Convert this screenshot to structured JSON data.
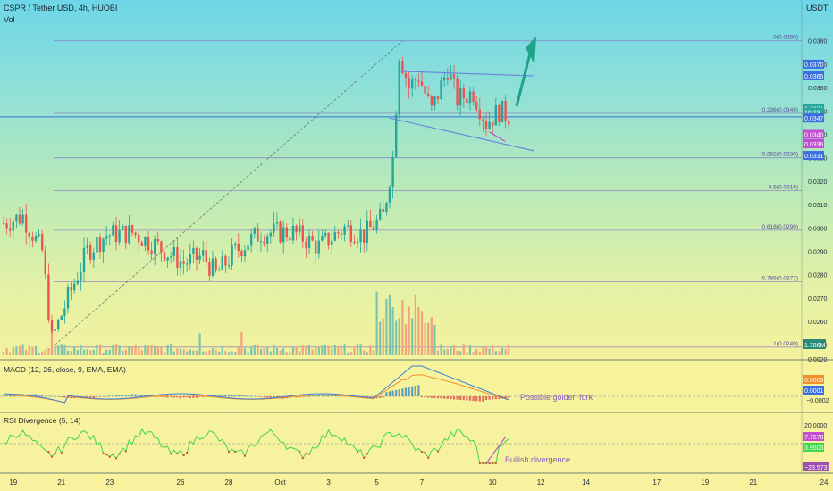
{
  "header": {
    "symbol_line": "CSPR / Tether USD, 4h, HUOBI",
    "vol_label": "Vol",
    "currency": "USDT"
  },
  "colors": {
    "up": "#26a69a",
    "down": "#ef5350",
    "vol_up": "#7dc4b0",
    "vol_down": "#f2a27c",
    "fib_line": "#8a72c8",
    "channel": "#6a7fe0",
    "arrow": "#1fa28a",
    "macd": "#3a7fe0",
    "signal": "#f0902a",
    "rsi": "#3fd64a",
    "rsi_low": "#e0482a"
  },
  "chart_data": [
    {
      "id": "price",
      "type": "candlestick",
      "ylim": [
        0.02455,
        0.0386
      ],
      "y_ticks": [
        "0.0380",
        "0.0370",
        "0.0360",
        "0.0350",
        "0.0340",
        "0.0330",
        "0.0320",
        "0.0310",
        "0.0300",
        "0.0290",
        "0.0280",
        "0.0270",
        "0.0260",
        "0.0250"
      ],
      "fib_levels": [
        {
          "label": "0(0.0380)",
          "value": 0.038
        },
        {
          "label": "0.236(0.0349)",
          "value": 0.0349
        },
        {
          "label": "0.382(0.0330)",
          "value": 0.033
        },
        {
          "label": "0.5(0.0316)",
          "value": 0.0316
        },
        {
          "label": "0.618(0.0299)",
          "value": 0.0299
        },
        {
          "label": "0.786(0.0277)",
          "value": 0.0277
        },
        {
          "label": "1(0.0249)",
          "value": 0.0249
        }
      ],
      "price_badges": [
        {
          "text": "0.0370",
          "value": 0.037,
          "color": "#3a6fe0"
        },
        {
          "text": "0.0365",
          "value": 0.0365,
          "color": "#3a6fe0"
        },
        {
          "text": "0.0351",
          "value": 0.0351,
          "color": "#26a69a"
        },
        {
          "text": "10:29",
          "value": 0.03495,
          "color": "#26a69a"
        },
        {
          "text": "0.0347",
          "value": 0.0347,
          "color": "#3a6fe0"
        },
        {
          "text": "0.0340",
          "value": 0.034,
          "color": "#c24fd0"
        },
        {
          "text": "0.0336",
          "value": 0.0336,
          "color": "#c24fd0"
        },
        {
          "text": "0.0331",
          "value": 0.0331,
          "color": "#3a6fe0"
        }
      ],
      "volume_badge": "1.786M",
      "channel": {
        "upper": [
          [
            0.0366,
            0.0365
          ]
        ],
        "lower": [
          [
            0.0347,
            0.0333
          ]
        ]
      },
      "swing_low": 0.025,
      "swing_high": 0.038,
      "last_price": 0.0351
    },
    {
      "id": "macd",
      "type": "line",
      "title": "MACD (12, 26, close, 9, EMA, EMA)",
      "badges": [
        {
          "text": "0.0003",
          "color": "#f0902a"
        },
        {
          "text": "0.0001",
          "color": "#3a6fe0"
        }
      ],
      "axis_label": "−0.0002",
      "axis_top": "0.0020",
      "annotation": "Possible golden fork"
    },
    {
      "id": "rsi",
      "type": "line",
      "title": "RSI Divergence (5, 14)",
      "axis_top": "20.0000",
      "badges": [
        {
          "text": "7.7578",
          "color": "#c24fd0"
        },
        {
          "text": "3.9503",
          "color": "#3fd64a"
        }
      ],
      "axis_label": "−23.5737",
      "annotation": "Bullish divergence"
    }
  ],
  "x_axis": {
    "labels": [
      {
        "text": "19",
        "i": 3
      },
      {
        "text": "21",
        "i": 18
      },
      {
        "text": "23",
        "i": 33
      },
      {
        "text": "26",
        "i": 55
      },
      {
        "text": "28",
        "i": 70
      },
      {
        "text": "Oct",
        "i": 86
      },
      {
        "text": "3",
        "i": 101
      },
      {
        "text": "5",
        "i": 116
      },
      {
        "text": "7",
        "i": 130
      },
      {
        "text": "10",
        "i": 152
      },
      {
        "text": "12",
        "i": 167
      },
      {
        "text": "14",
        "i": 181
      },
      {
        "text": "17",
        "i": 203
      },
      {
        "text": "19",
        "i": 218
      },
      {
        "text": "21",
        "i": 233
      },
      {
        "text": "24",
        "i": 255
      },
      {
        "text": "26",
        "i": 270
      }
    ]
  }
}
